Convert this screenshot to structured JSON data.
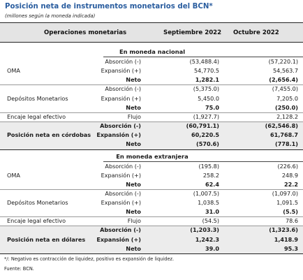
{
  "title": "Posición neta de instrumentos monetarios del BCN*",
  "subtitle": "(millones según la moneda indicada)",
  "header": {
    "col_operations": "Operaciones monetarias",
    "col_sep": "Septiembre 2022",
    "col_oct": "Octubre 2022"
  },
  "national": {
    "heading": "En moneda nacional",
    "oma": {
      "label": "OMA",
      "rows": [
        {
          "sub": "Absorción (-)",
          "sep": "(53,488.4)",
          "oct": "(57,220.1)"
        },
        {
          "sub": "Expansión (+)",
          "sep": "54,770.5",
          "oct": "54,563.7"
        },
        {
          "sub": "Neto",
          "sep": "1,282.1",
          "oct": "(2,656.4)"
        }
      ]
    },
    "depositos": {
      "label": "Depósitos Monetarios",
      "rows": [
        {
          "sub": "Absorción (-)",
          "sep": "(5,375.0)",
          "oct": "(7,455.0)"
        },
        {
          "sub": "Expansión (+)",
          "sep": "5,450.0",
          "oct": "7,205.0"
        },
        {
          "sub": "Neto",
          "sep": "75.0",
          "oct": "(250.0)"
        }
      ]
    },
    "encaje": {
      "label": "Encaje legal efectivo",
      "sub": "Flujo",
      "sep": "(1,927.7)",
      "oct": "2,128.2"
    },
    "total": {
      "label": "Posición neta en córdobas",
      "rows": [
        {
          "sub": "Absorción (-)",
          "sep": "(60,791.1)",
          "oct": "(62,546.8)"
        },
        {
          "sub": "Expansión (+)",
          "sep": "60,220.5",
          "oct": "61,768.7"
        },
        {
          "sub": "Neto",
          "sep": "(570.6)",
          "oct": "(778.1)"
        }
      ]
    }
  },
  "foreign": {
    "heading": "En moneda extranjera",
    "oma": {
      "label": "OMA",
      "rows": [
        {
          "sub": "Absorción (-)",
          "sep": "(195.8)",
          "oct": "(226.6)"
        },
        {
          "sub": "Expansión (+)",
          "sep": "258.2",
          "oct": "248.9"
        },
        {
          "sub": "Neto",
          "sep": "62.4",
          "oct": "22.2"
        }
      ]
    },
    "depositos": {
      "label": "Depósitos Monetarios",
      "rows": [
        {
          "sub": "Absorción (-)",
          "sep": "(1,007.5)",
          "oct": "(1,097.0)"
        },
        {
          "sub": "Expansión (+)",
          "sep": "1,038.5",
          "oct": "1,091.5"
        },
        {
          "sub": "Neto",
          "sep": "31.0",
          "oct": "(5.5)"
        }
      ]
    },
    "encaje": {
      "label": "Encaje legal efectivo",
      "sub": "Flujo",
      "sep": "(54.5)",
      "oct": "78.6"
    },
    "total": {
      "label": "Posición neta en dólares",
      "rows": [
        {
          "sub": "Absorción (-)",
          "sep": "(1,203.3)",
          "oct": "(1,323.6)"
        },
        {
          "sub": "Expansión (+)",
          "sep": "1,242.3",
          "oct": "1,418.9"
        },
        {
          "sub": "Neto",
          "sep": "39.0",
          "oct": "95.3"
        }
      ]
    }
  },
  "footnote": "*/: Negativo es contracción de liquidez, positivo es expansión de liquidez.",
  "source": "Fuente: BCN."
}
